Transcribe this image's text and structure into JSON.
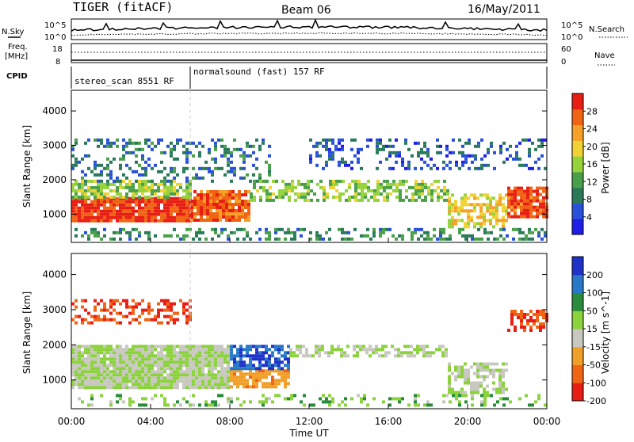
{
  "header": {
    "title": "TIGER (fitACF)",
    "beam": "Beam 06",
    "date": "16/May/2011"
  },
  "top_panels": {
    "nsky_label": "N.Sky",
    "nsearch_label": "N.Search",
    "noise_ticks_left": [
      "10^5",
      "10^0"
    ],
    "noise_ticks_right": [
      "10^5",
      "10^0"
    ],
    "freq_label_1": "Freq.",
    "freq_label_2": "[MHz]",
    "freq_ticks": [
      "18",
      "8"
    ],
    "nave_label": "Nave",
    "nave_ticks": [
      "60",
      "0"
    ],
    "cpid_label": "CPID",
    "cpid_segments": [
      {
        "label": "stereo_scan 8551 RF",
        "start": "00:00",
        "end": "06:00"
      },
      {
        "label": "normalsound (fast) 157 RF",
        "start": "06:00",
        "end": "24:00"
      }
    ]
  },
  "chart_data": [
    {
      "type": "heatmap",
      "name": "power",
      "ylabel": "Slant Range [km]",
      "xlabel": "",
      "ylim": [
        180,
        4600
      ],
      "xlim": [
        "00:00",
        "24:00"
      ],
      "yticks": [
        1000,
        2000,
        3000,
        4000
      ],
      "colorbar": {
        "label": "Power [dB]",
        "range": [
          0,
          32
        ],
        "ticks": [
          4,
          8,
          12,
          16,
          20,
          24,
          28
        ],
        "colors": [
          "#1e1ee6",
          "#2850d8",
          "#2a7a5a",
          "#4aa04a",
          "#96d23c",
          "#f0d232",
          "#f5a028",
          "#f06414",
          "#e81e14"
        ]
      },
      "bands": [
        {
          "t0": 0,
          "t1": 6,
          "r0": 800,
          "r1": 1500,
          "level": 29,
          "density": 0.95
        },
        {
          "t0": 6,
          "t1": 9,
          "r0": 800,
          "r1": 1700,
          "level": 27,
          "density": 0.9
        },
        {
          "t0": 0,
          "t1": 6,
          "r0": 1500,
          "r1": 2000,
          "level": 16,
          "density": 0.7
        },
        {
          "t0": 0,
          "t1": 10,
          "r0": 2000,
          "r1": 3200,
          "level": 8,
          "density": 0.3
        },
        {
          "t0": 9,
          "t1": 19,
          "r0": 1400,
          "r1": 2000,
          "level": 15,
          "density": 0.55
        },
        {
          "t0": 19,
          "t1": 22,
          "r0": 600,
          "r1": 1600,
          "level": 20,
          "density": 0.6
        },
        {
          "t0": 22,
          "t1": 24,
          "r0": 900,
          "r1": 1800,
          "level": 28,
          "density": 0.9
        },
        {
          "t0": 12,
          "t1": 24,
          "r0": 2300,
          "r1": 3200,
          "level": 6,
          "density": 0.25
        },
        {
          "t0": 0,
          "t1": 24,
          "r0": 250,
          "r1": 600,
          "level": 10,
          "density": 0.35
        }
      ]
    },
    {
      "type": "heatmap",
      "name": "velocity",
      "ylabel": "Slant Range [km]",
      "xlabel": "Time UT",
      "ylim": [
        180,
        4600
      ],
      "xlim": [
        "00:00",
        "24:00"
      ],
      "xticks": [
        "00:00",
        "04:00",
        "08:00",
        "12:00",
        "16:00",
        "20:00",
        "00:00"
      ],
      "yticks": [
        1000,
        2000,
        3000,
        4000
      ],
      "colorbar": {
        "label": "Velocity [m s^-1]",
        "ticks": [
          "200",
          "100",
          "50",
          "15",
          "-15",
          "-50",
          "-100",
          "-200"
        ],
        "colors": [
          "#1e32c8",
          "#2878c8",
          "#288c3c",
          "#8cd23c",
          "#c8c8c0",
          "#f0a028",
          "#f06414",
          "#e81e14"
        ]
      },
      "bands": [
        {
          "t0": 0,
          "t1": 8,
          "r0": 800,
          "r1": 2000,
          "level": 0,
          "density": 0.95
        },
        {
          "t0": 8,
          "t1": 11,
          "r0": 800,
          "r1": 1300,
          "level": -60,
          "density": 0.8
        },
        {
          "t0": 8,
          "t1": 11,
          "r0": 1300,
          "r1": 2000,
          "level": 150,
          "density": 0.7
        },
        {
          "t0": 11,
          "t1": 19,
          "r0": 1700,
          "r1": 2000,
          "level": 0,
          "density": 0.6
        },
        {
          "t0": 19,
          "t1": 22,
          "r0": 600,
          "r1": 1500,
          "level": 0,
          "density": 0.6
        },
        {
          "t0": 0,
          "t1": 6,
          "r0": 2600,
          "r1": 3300,
          "level": -150,
          "density": 0.45
        },
        {
          "t0": 22,
          "t1": 24,
          "r0": 2400,
          "r1": 3000,
          "level": -150,
          "density": 0.45
        },
        {
          "t0": 0,
          "t1": 24,
          "r0": 250,
          "r1": 600,
          "level": 20,
          "density": 0.25
        }
      ]
    }
  ]
}
